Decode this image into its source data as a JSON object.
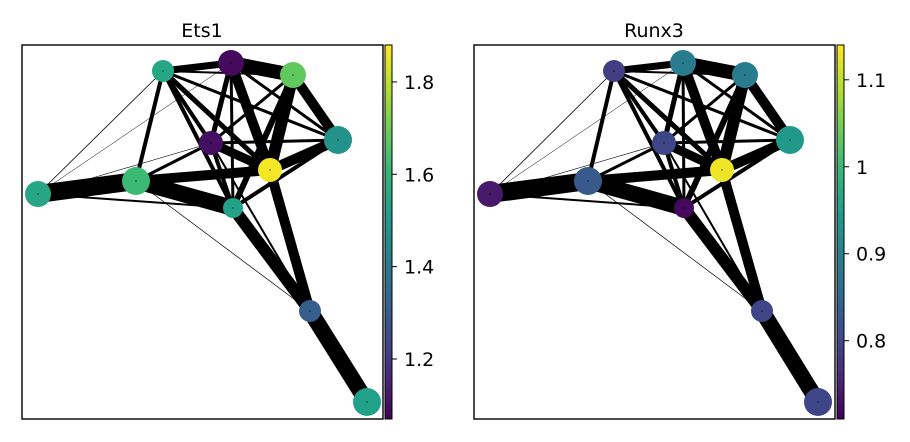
{
  "chart_data": [
    {
      "type": "graph",
      "title": "Ets1",
      "colormap": "viridis",
      "colorbar": {
        "ticks": [
          1.2,
          1.4,
          1.6,
          1.8
        ],
        "tick_labels": [
          "1.2",
          "1.4",
          "1.6",
          "1.8"
        ],
        "range": [
          1.07,
          1.88
        ]
      },
      "nodes": [
        {
          "id": 0,
          "value": 1.68
        },
        {
          "id": 1,
          "value": 1.48
        },
        {
          "id": 2,
          "value": 1.1
        },
        {
          "id": 3,
          "value": 1.87
        },
        {
          "id": 4,
          "value": 1.62
        },
        {
          "id": 5,
          "value": 1.55
        },
        {
          "id": 6,
          "value": 1.53
        },
        {
          "id": 7,
          "value": 1.31
        },
        {
          "id": 8,
          "value": 1.09
        },
        {
          "id": 9,
          "value": 1.53
        },
        {
          "id": 10,
          "value": 1.55
        },
        {
          "id": 11,
          "value": 1.5
        }
      ]
    },
    {
      "type": "graph",
      "title": "Runx3",
      "colormap": "viridis",
      "colorbar": {
        "ticks": [
          0.8,
          0.9,
          1.0,
          1.1
        ],
        "tick_labels": [
          "0.8",
          "0.9",
          "1",
          "1.1"
        ],
        "range": [
          0.71,
          1.14
        ]
      },
      "nodes": [
        {
          "id": 0,
          "value": 0.72
        },
        {
          "id": 1,
          "value": 0.8
        },
        {
          "id": 2,
          "value": 0.74
        },
        {
          "id": 3,
          "value": 0.79
        },
        {
          "id": 4,
          "value": 0.94
        },
        {
          "id": 5,
          "value": 0.89
        },
        {
          "id": 6,
          "value": 1.13
        },
        {
          "id": 7,
          "value": 0.89
        },
        {
          "id": 8,
          "value": 0.83
        },
        {
          "id": 9,
          "value": 0.89
        },
        {
          "id": 10,
          "value": 0.8
        },
        {
          "id": 11,
          "value": 0.8
        }
      ]
    }
  ]
}
